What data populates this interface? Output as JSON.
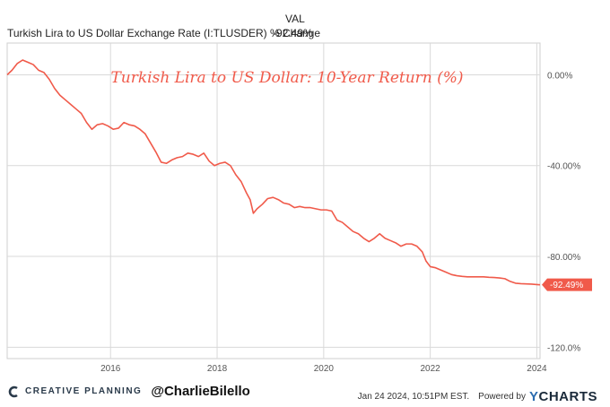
{
  "legend": {
    "column_header": "VAL",
    "series_name": "Turkish Lira to US Dollar Exchange Rate (I:TLUSDER) % Change",
    "series_value": "-92.49%"
  },
  "footer": {
    "brand": "CREATIVE PLANNING",
    "handle": "@CharlieBilello",
    "timestamp": "Jan 24 2024, 10:51PM EST.",
    "powered_by": "Powered by",
    "provider": "CHARTS",
    "provider_y": "Y"
  },
  "colors": {
    "series": "#f05a4a",
    "grid": "#d9d9d9",
    "axis_text": "#555555"
  },
  "chart_data": {
    "type": "line",
    "title": "Turkish Lira to US Dollar: 10-Year Return (%)",
    "xlabel": "",
    "ylabel": "",
    "x_ticks": [
      "2016",
      "2018",
      "2020",
      "2022",
      "2024"
    ],
    "y_ticks": [
      "0.00%",
      "-40.00%",
      "-80.00%",
      "-120.0%"
    ],
    "xlim": [
      2014.06,
      2024.06
    ],
    "ylim": [
      -125,
      14
    ],
    "end_label": "-92.49%",
    "series": [
      {
        "x": [
          2014.06,
          2014.15,
          2014.25,
          2014.35,
          2014.45,
          2014.55,
          2014.65,
          2014.75,
          2014.85,
          2014.95,
          2015.05,
          2015.15,
          2015.25,
          2015.35,
          2015.45,
          2015.55,
          2015.65,
          2015.75,
          2015.85,
          2015.95,
          2016.05,
          2016.15,
          2016.25,
          2016.35,
          2016.45,
          2016.55,
          2016.65,
          2016.75,
          2016.85,
          2016.95,
          2017.05,
          2017.15,
          2017.25,
          2017.35,
          2017.45,
          2017.55,
          2017.65,
          2017.75,
          2017.85,
          2017.95,
          2018.05,
          2018.15,
          2018.25,
          2018.35,
          2018.45,
          2018.55,
          2018.62,
          2018.68,
          2018.75,
          2018.85,
          2018.95,
          2019.05,
          2019.15,
          2019.25,
          2019.35,
          2019.45,
          2019.55,
          2019.65,
          2019.75,
          2019.85,
          2019.95,
          2020.05,
          2020.15,
          2020.25,
          2020.35,
          2020.45,
          2020.55,
          2020.65,
          2020.75,
          2020.85,
          2020.95,
          2021.05,
          2021.15,
          2021.25,
          2021.35,
          2021.45,
          2021.55,
          2021.65,
          2021.75,
          2021.85,
          2021.92,
          2022.0,
          2022.1,
          2022.2,
          2022.3,
          2022.4,
          2022.5,
          2022.6,
          2022.7,
          2022.8,
          2022.9,
          2023.0,
          2023.1,
          2023.2,
          2023.3,
          2023.4,
          2023.5,
          2023.6,
          2023.7,
          2023.8,
          2023.9,
          2024.0,
          2024.06
        ],
        "values": [
          0.0,
          2.0,
          5.0,
          6.5,
          5.5,
          4.5,
          2.0,
          1.0,
          -2.0,
          -6.0,
          -9.0,
          -11.0,
          -13.0,
          -15.0,
          -17.0,
          -21.0,
          -24.0,
          -22.0,
          -21.5,
          -22.5,
          -24.0,
          -23.5,
          -21.0,
          -22.0,
          -22.5,
          -24.0,
          -26.0,
          -30.0,
          -34.0,
          -38.5,
          -39.0,
          -37.5,
          -36.5,
          -36.0,
          -34.5,
          -35.0,
          -36.0,
          -34.5,
          -38.0,
          -40.0,
          -39.0,
          -38.5,
          -40.0,
          -44.0,
          -47.0,
          -52.0,
          -55.0,
          -61.0,
          -59.0,
          -57.0,
          -54.5,
          -54.0,
          -55.0,
          -56.5,
          -57.0,
          -58.5,
          -58.0,
          -58.5,
          -58.5,
          -59.0,
          -59.5,
          -59.5,
          -60.0,
          -64.0,
          -65.0,
          -67.0,
          -69.0,
          -70.0,
          -72.0,
          -73.5,
          -72.0,
          -70.0,
          -72.0,
          -73.0,
          -74.0,
          -75.5,
          -74.5,
          -74.5,
          -75.5,
          -78.0,
          -82.0,
          -84.5,
          -85.0,
          -86.0,
          -87.0,
          -88.0,
          -88.5,
          -88.8,
          -89.0,
          -89.0,
          -89.0,
          -89.0,
          -89.2,
          -89.3,
          -89.5,
          -89.8,
          -91.0,
          -91.8,
          -92.0,
          -92.1,
          -92.2,
          -92.4,
          -92.49
        ]
      }
    ]
  }
}
